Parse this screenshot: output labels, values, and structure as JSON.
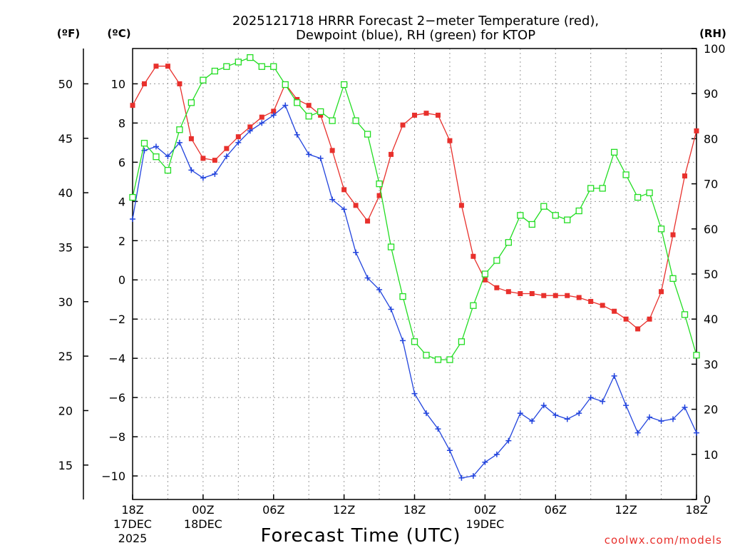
{
  "chart_data": {
    "type": "line",
    "title_line1": "2025121718 HRRR Forecast 2−meter Temperature (red),",
    "title_line2": "Dewpoint (blue), RH (green) for KTOP",
    "xlabel": "Forecast Time (UTC)",
    "credit": "coolwx.com/models",
    "units": {
      "fahrenheit": "(ºF)",
      "celsius": "(ºC)",
      "rh": "(RH)"
    },
    "x_hours": [
      0,
      1,
      2,
      3,
      4,
      5,
      6,
      7,
      8,
      9,
      10,
      11,
      12,
      13,
      14,
      15,
      16,
      17,
      18,
      19,
      20,
      21,
      22,
      23,
      24,
      25,
      26,
      27,
      28,
      29,
      30,
      31,
      32,
      33,
      34,
      35,
      36,
      37,
      38,
      39,
      40,
      41,
      42,
      43,
      44,
      45,
      46,
      47,
      48
    ],
    "xlim": [
      0,
      48
    ],
    "celsius_axis": {
      "ylim": [
        -11.2,
        11.8
      ],
      "ticks": [
        "10",
        "8",
        "6",
        "4",
        "2",
        "0",
        "−2",
        "−4",
        "−6",
        "−8",
        "−10"
      ],
      "tick_values": [
        10,
        8,
        6,
        4,
        2,
        0,
        -2,
        -4,
        -6,
        -8,
        -10
      ]
    },
    "fahrenheit_axis": {
      "ticks": [
        "50",
        "45",
        "40",
        "35",
        "30",
        "25",
        "20",
        "15"
      ],
      "tick_values": [
        50,
        45,
        40,
        35,
        30,
        25,
        20,
        15
      ]
    },
    "rh_axis": {
      "ylim": [
        0,
        100
      ],
      "ticks": [
        "100",
        "90",
        "80",
        "70",
        "60",
        "50",
        "40",
        "30",
        "20",
        "10",
        "0"
      ],
      "tick_values": [
        100,
        90,
        80,
        70,
        60,
        50,
        40,
        30,
        20,
        10,
        0
      ]
    },
    "x_ticks": [
      {
        "hour": 0,
        "lines": [
          "18Z",
          "17DEC",
          "2025"
        ]
      },
      {
        "hour": 6,
        "lines": [
          "00Z",
          "18DEC"
        ]
      },
      {
        "hour": 12,
        "lines": [
          "06Z"
        ]
      },
      {
        "hour": 18,
        "lines": [
          "12Z"
        ]
      },
      {
        "hour": 24,
        "lines": [
          "18Z"
        ]
      },
      {
        "hour": 30,
        "lines": [
          "00Z",
          "19DEC"
        ]
      },
      {
        "hour": 36,
        "lines": [
          "06Z"
        ]
      },
      {
        "hour": 42,
        "lines": [
          "12Z"
        ]
      },
      {
        "hour": 48,
        "lines": [
          "18Z"
        ]
      }
    ],
    "grid": true,
    "series": [
      {
        "name": "2-meter Temperature",
        "axis": "celsius",
        "color": "#e8302c",
        "marker": "filled-square",
        "values": [
          8.9,
          10.0,
          10.9,
          10.9,
          10.0,
          7.2,
          6.2,
          6.1,
          6.7,
          7.3,
          7.8,
          8.3,
          8.6,
          10.0,
          9.2,
          8.9,
          8.4,
          6.6,
          4.6,
          3.8,
          3.0,
          4.3,
          6.4,
          7.9,
          8.4,
          8.5,
          8.4,
          7.1,
          3.8,
          1.2,
          0.0,
          -0.4,
          -0.6,
          -0.7,
          -0.7,
          -0.8,
          -0.8,
          -0.8,
          -0.9,
          -1.1,
          -1.3,
          -1.6,
          -2.0,
          -2.5,
          -2.0,
          -0.6,
          2.3,
          5.3,
          7.6
        ]
      },
      {
        "name": "Dewpoint",
        "axis": "celsius",
        "color": "#2244dd",
        "marker": "plus",
        "values": [
          3.1,
          6.6,
          6.8,
          6.3,
          7.0,
          5.6,
          5.2,
          5.4,
          6.3,
          7.0,
          7.6,
          8.0,
          8.4,
          8.9,
          7.4,
          6.4,
          6.2,
          4.1,
          3.6,
          1.4,
          0.1,
          -0.5,
          -1.5,
          -3.1,
          -5.8,
          -6.8,
          -7.6,
          -8.7,
          -10.1,
          -10.0,
          -9.3,
          -8.9,
          -8.2,
          -6.8,
          -7.2,
          -6.4,
          -6.9,
          -7.1,
          -6.8,
          -6.0,
          -6.2,
          -4.9,
          -6.4,
          -7.8,
          -7.0,
          -7.2,
          -7.1,
          -6.5,
          -7.8
        ]
      },
      {
        "name": "Relative Humidity",
        "axis": "rh",
        "color": "#22dd22",
        "marker": "open-square",
        "values": [
          67,
          79,
          76,
          73,
          82,
          88,
          93,
          95,
          96,
          97,
          98,
          96,
          96,
          92,
          88,
          85,
          86,
          84,
          92,
          84,
          81,
          70,
          56,
          45,
          35,
          32,
          31,
          31,
          35,
          43,
          50,
          53,
          57,
          63,
          61,
          65,
          63,
          62,
          64,
          69,
          69,
          77,
          72,
          67,
          68,
          60,
          49,
          41,
          32
        ]
      }
    ]
  }
}
